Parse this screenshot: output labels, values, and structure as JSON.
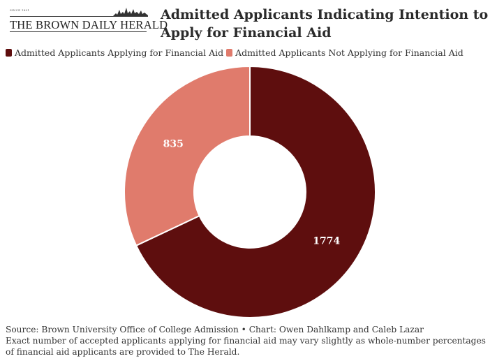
{
  "brand": {
    "since": "SINCE 1891",
    "name": "THE BROWN DAILY HERALD"
  },
  "title": "Admitted Applicants Indicating Intention to Apply for Financial Aid",
  "colors": {
    "applying": "#5e0e0e",
    "not_applying": "#e07b6c"
  },
  "chart_data": {
    "type": "pie",
    "donut": true,
    "title": "Admitted Applicants Indicating Intention to Apply for Financial Aid",
    "legend_position": "top-left",
    "series": [
      {
        "name": "Admitted Applicants Applying for Financial Aid",
        "value": 1774,
        "label": "1774",
        "color": "#5e0e0e"
      },
      {
        "name": "Admitted Applicants Not Applying for Financial Aid",
        "value": 835,
        "label": "835",
        "color": "#e07b6c"
      }
    ]
  },
  "footer": {
    "line1": "Source: Brown University Office of College Admission • Chart: Owen Dahlkamp and Caleb Lazar",
    "line2": "Exact number of accepted applicants applying for financial aid may vary slightly as whole-number percentages of financial aid applicants are provided to The Herald."
  }
}
